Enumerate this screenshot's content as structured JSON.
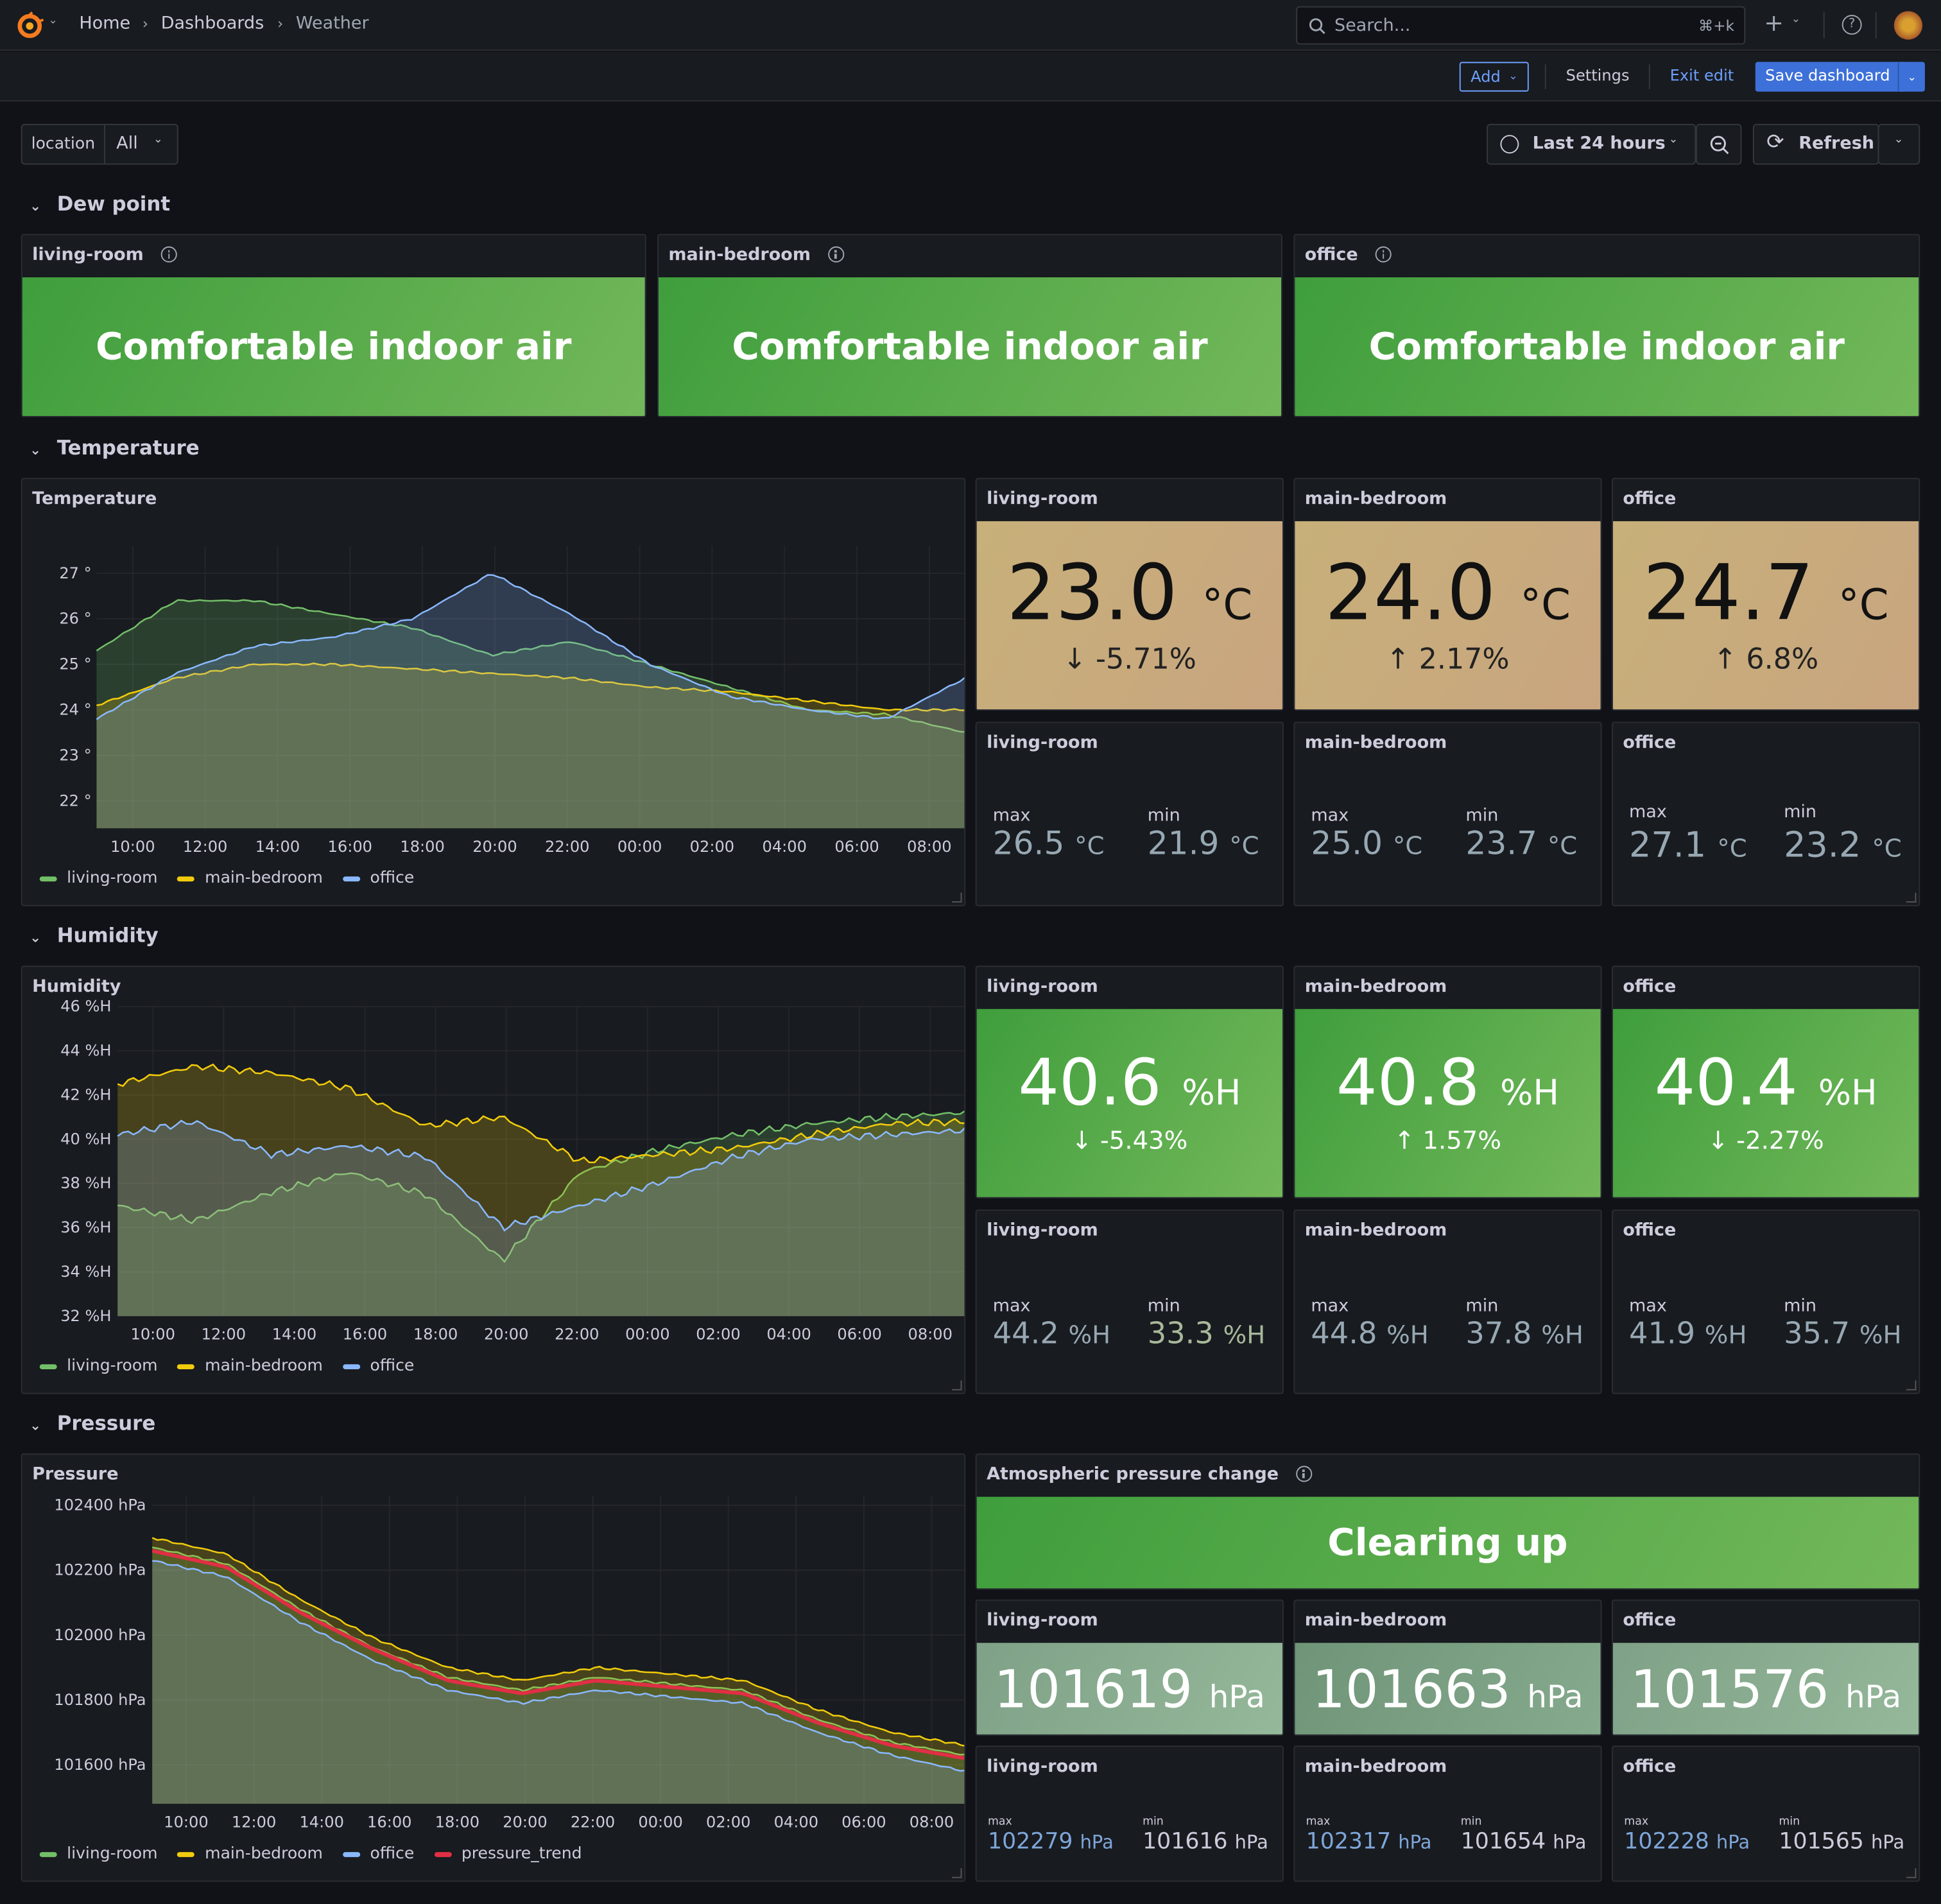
{
  "nav": {
    "home": "Home",
    "dashboards": "Dashboards",
    "current": "Weather"
  },
  "search": {
    "placeholder": "Search...",
    "shortcut": "⌘+k"
  },
  "toolbar": {
    "add": "Add",
    "settings": "Settings",
    "exit_edit": "Exit edit",
    "save": "Save dashboard"
  },
  "variables": {
    "location_label": "location",
    "location_value": "All"
  },
  "time": {
    "range": "Last 24 hours",
    "refresh": "Refresh"
  },
  "rows": {
    "dew": "Dew point",
    "temp": "Temperature",
    "hum": "Humidity",
    "press": "Pressure"
  },
  "dew": {
    "panels": [
      {
        "title": "living-room",
        "text": "Comfortable indoor air"
      },
      {
        "title": "main-bedroom",
        "text": "Comfortable indoor air"
      },
      {
        "title": "office",
        "text": "Comfortable indoor air"
      }
    ]
  },
  "temperature": {
    "chart_title": "Temperature",
    "stats": [
      {
        "title": "living-room",
        "value": "23.0",
        "unit": "°C",
        "delta": "-5.71%",
        "dir": "down"
      },
      {
        "title": "main-bedroom",
        "value": "24.0",
        "unit": "°C",
        "delta": "2.17%",
        "dir": "up"
      },
      {
        "title": "office",
        "value": "24.7",
        "unit": "°C",
        "delta": "6.8%",
        "dir": "up"
      }
    ],
    "minmax": [
      {
        "title": "living-room",
        "max": "26.5",
        "min": "21.9",
        "unit": "°C"
      },
      {
        "title": "main-bedroom",
        "max": "25.0",
        "min": "23.7",
        "unit": "°C"
      },
      {
        "title": "office",
        "max": "27.1",
        "min": "23.2",
        "unit": "°C"
      }
    ]
  },
  "humidity": {
    "chart_title": "Humidity",
    "stats": [
      {
        "title": "living-room",
        "value": "40.6",
        "unit": "%H",
        "delta": "-5.43%",
        "dir": "down"
      },
      {
        "title": "main-bedroom",
        "value": "40.8",
        "unit": "%H",
        "delta": "1.57%",
        "dir": "up"
      },
      {
        "title": "office",
        "value": "40.4",
        "unit": "%H",
        "delta": "-2.27%",
        "dir": "down"
      }
    ],
    "minmax": [
      {
        "title": "living-room",
        "max": "44.2",
        "min": "33.3",
        "unit": "%H"
      },
      {
        "title": "main-bedroom",
        "max": "44.8",
        "min": "37.8",
        "unit": "%H"
      },
      {
        "title": "office",
        "max": "41.9",
        "min": "35.7",
        "unit": "%H"
      }
    ]
  },
  "pressure": {
    "chart_title": "Pressure",
    "change_title": "Atmospheric pressure change",
    "change_text": "Clearing up",
    "stats": [
      {
        "title": "living-room",
        "value": "101619",
        "unit": "hPa"
      },
      {
        "title": "main-bedroom",
        "value": "101663",
        "unit": "hPa"
      },
      {
        "title": "office",
        "value": "101576",
        "unit": "hPa"
      }
    ],
    "minmax": [
      {
        "title": "living-room",
        "max": "102279",
        "min": "101616",
        "unit": "hPa"
      },
      {
        "title": "main-bedroom",
        "max": "102317",
        "min": "101654",
        "unit": "hPa"
      },
      {
        "title": "office",
        "max": "102228",
        "min": "101565",
        "unit": "hPa"
      }
    ]
  },
  "labels": {
    "max": "max",
    "min": "min"
  },
  "icons": {
    "logo": "grafana-logo-icon",
    "search": "search-icon",
    "plus": "plus-icon",
    "help": "help-icon",
    "clock": "clock-icon",
    "zoom": "zoom-out-icon",
    "refresh": "refresh-icon"
  },
  "colors": {
    "living_room": "#73bf69",
    "main_bedroom": "#f2cc0c",
    "office": "#8ab8ff",
    "pressure_trend": "#e02f44",
    "accent": "#3d71d9"
  },
  "chart_data": [
    {
      "type": "line",
      "title": "Temperature",
      "x": [
        "10:00",
        "12:00",
        "14:00",
        "16:00",
        "18:00",
        "20:00",
        "22:00",
        "00:00",
        "02:00",
        "04:00",
        "06:00",
        "08:00"
      ],
      "yticks": [
        "27 °",
        "26 °",
        "25 °",
        "24 °",
        "23 °",
        "22 °"
      ],
      "ylim": [
        21.4,
        27.6
      ],
      "series": [
        {
          "name": "living-room",
          "values": [
            25.3,
            26.4,
            26.4,
            26.1,
            25.8,
            25.2,
            25.5,
            25.0,
            24.5,
            24.0,
            23.9,
            23.5
          ]
        },
        {
          "name": "main-bedroom",
          "values": [
            24.1,
            24.7,
            25.0,
            25.0,
            24.9,
            24.8,
            24.7,
            24.5,
            24.4,
            24.2,
            24.0,
            24.0
          ]
        },
        {
          "name": "office",
          "values": [
            23.8,
            24.8,
            25.4,
            25.6,
            26.0,
            27.0,
            26.1,
            25.0,
            24.3,
            24.0,
            23.8,
            24.7
          ]
        }
      ]
    },
    {
      "type": "line",
      "title": "Humidity",
      "x": [
        "10:00",
        "12:00",
        "14:00",
        "16:00",
        "18:00",
        "20:00",
        "22:00",
        "00:00",
        "02:00",
        "04:00",
        "06:00",
        "08:00"
      ],
      "yticks": [
        "46 %H",
        "44 %H",
        "42 %H",
        "40 %H",
        "38 %H",
        "36 %H",
        "34 %H",
        "32 %H"
      ],
      "ylim": [
        32,
        46
      ],
      "series": [
        {
          "name": "living-room",
          "values": [
            37.0,
            36.3,
            37.6,
            38.5,
            37.5,
            34.5,
            38.5,
            39.5,
            40.2,
            40.7,
            41.0,
            41.2
          ]
        },
        {
          "name": "main-bedroom",
          "values": [
            42.5,
            43.3,
            43.0,
            42.3,
            40.6,
            41.0,
            39.0,
            39.3,
            39.6,
            40.2,
            40.7,
            40.8
          ]
        },
        {
          "name": "office",
          "values": [
            40.2,
            40.8,
            39.3,
            39.7,
            39.2,
            36.0,
            37.0,
            38.0,
            39.2,
            40.0,
            40.2,
            40.4
          ]
        }
      ]
    },
    {
      "type": "line",
      "title": "Pressure",
      "x": [
        "10:00",
        "12:00",
        "14:00",
        "16:00",
        "18:00",
        "20:00",
        "22:00",
        "00:00",
        "02:00",
        "04:00",
        "06:00",
        "08:00"
      ],
      "yticks": [
        "102400 hPa",
        "102200 hPa",
        "102000 hPa",
        "101800 hPa",
        "101600 hPa"
      ],
      "ylim": [
        101480,
        102430
      ],
      "series": [
        {
          "name": "living-room",
          "values": [
            102270,
            102220,
            102080,
            101960,
            101870,
            101830,
            101870,
            101850,
            101830,
            101740,
            101670,
            101630
          ]
        },
        {
          "name": "main-bedroom",
          "values": [
            102300,
            102250,
            102110,
            101990,
            101900,
            101860,
            101900,
            101880,
            101860,
            101770,
            101700,
            101660
          ]
        },
        {
          "name": "office",
          "values": [
            102230,
            102180,
            102040,
            101920,
            101830,
            101790,
            101830,
            101810,
            101790,
            101700,
            101630,
            101580
          ]
        },
        {
          "name": "pressure_trend",
          "values": [
            102260,
            102210,
            102070,
            101955,
            101860,
            101820,
            101860,
            101840,
            101820,
            101730,
            101660,
            101620
          ]
        }
      ]
    }
  ]
}
